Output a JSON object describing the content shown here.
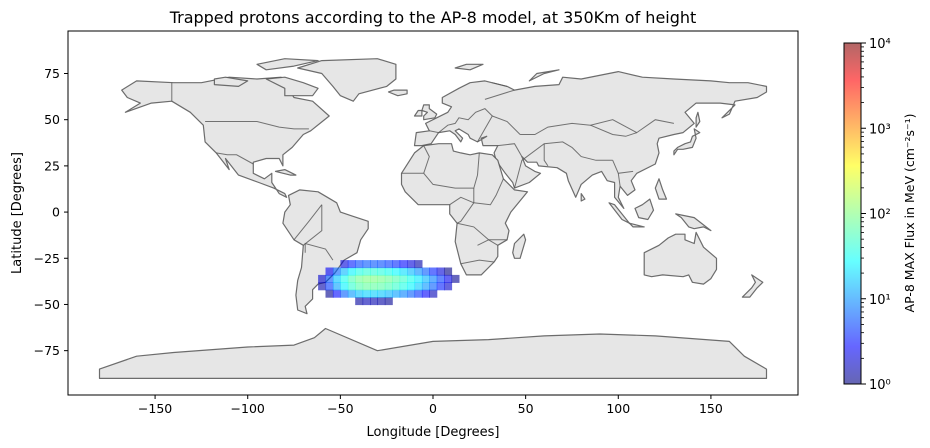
{
  "chart_data": {
    "type": "heatmap",
    "title": "Trapped protons according to the AP-8 model, at 350Km of height",
    "xlabel": "Longitude [Degrees]",
    "ylabel": "Latitude [Degrees]",
    "xlim": [
      -197,
      197
    ],
    "ylim": [
      -99,
      98
    ],
    "xticks": [
      -150,
      -100,
      -50,
      0,
      50,
      100,
      150
    ],
    "xtick_labels": [
      "−150",
      "−100",
      "−50",
      "0",
      "50",
      "100",
      "150"
    ],
    "yticks": [
      75,
      50,
      25,
      0,
      -25,
      -50,
      -75
    ],
    "ytick_labels": [
      "75",
      "50",
      "25",
      "0",
      "−25",
      "−50",
      "−75"
    ],
    "colorbar": {
      "label": "AP-8 MAX Flux in MeV (cm⁻²s⁻¹)",
      "scale": "log",
      "range": [
        1,
        10000
      ],
      "ticks": [
        1,
        10,
        100,
        1000,
        10000
      ],
      "tick_labels": [
        "10⁰",
        "10¹",
        "10²",
        "10³",
        "10⁴"
      ],
      "colormap": "jet",
      "alpha": 0.6
    },
    "grid": false,
    "basemap": "world country borders",
    "region": "South Atlantic Anomaly",
    "flux_peak": {
      "lon": -35,
      "lat": -37,
      "value": 100
    },
    "colors": {
      "land": "#e6e6e6",
      "border": "#555555",
      "frame": "#000000"
    }
  }
}
